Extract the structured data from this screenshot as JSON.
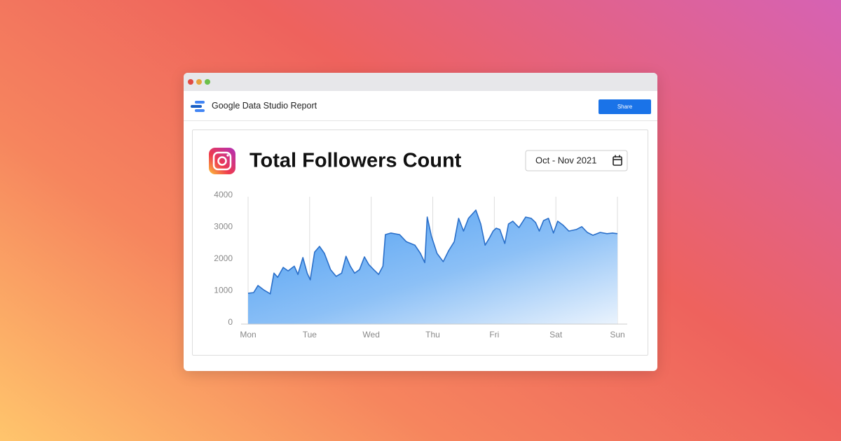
{
  "app": {
    "title": "Google Data Studio Report",
    "share": "Share"
  },
  "chart_data": {
    "type": "area",
    "title": "Total Followers Count",
    "subtitle": "Oct - Nov 2021",
    "xlim": [
      0,
      6
    ],
    "ylim": [
      0,
      4000
    ],
    "xticks": [
      {
        "value": 0,
        "label": "Mon"
      },
      {
        "value": 1,
        "label": "Tue"
      },
      {
        "value": 2,
        "label": "Wed"
      },
      {
        "value": 3,
        "label": "Thu"
      },
      {
        "value": 4,
        "label": "Fri"
      },
      {
        "value": 5,
        "label": "Sat"
      },
      {
        "value": 6,
        "label": "Sun"
      }
    ],
    "yticks": [
      0,
      1000,
      2000,
      3000,
      4000
    ],
    "grid": true,
    "series": [
      {
        "color": "#2a6fc9",
        "x": [
          0,
          0.09,
          0.16,
          0.25,
          0.36,
          0.42,
          0.48,
          0.57,
          0.65,
          0.75,
          0.81,
          0.89,
          0.96,
          1.01,
          1.08,
          1.16,
          1.24,
          1.34,
          1.43,
          1.52,
          1.59,
          1.66,
          1.73,
          1.81,
          1.89,
          1.96,
          2.04,
          2.12,
          2.19,
          2.23,
          2.32,
          2.46,
          2.57,
          2.71,
          2.8,
          2.87,
          2.91,
          2.98,
          3.07,
          3.17,
          3.26,
          3.35,
          3.42,
          3.5,
          3.58,
          3.7,
          3.78,
          3.85,
          3.92,
          3.98,
          4.03,
          4.09,
          4.17,
          4.23,
          4.3,
          4.4,
          4.51,
          4.6,
          4.67,
          4.73,
          4.8,
          4.88,
          4.96,
          5.03,
          5.12,
          5.21,
          5.33,
          5.42,
          5.51,
          5.6,
          5.72,
          5.83,
          5.92,
          6
        ],
        "values": [
          970,
          990,
          1210,
          1080,
          950,
          1600,
          1470,
          1780,
          1670,
          1820,
          1560,
          2090,
          1600,
          1390,
          2260,
          2440,
          2220,
          1710,
          1500,
          1600,
          2130,
          1820,
          1600,
          1710,
          2110,
          1870,
          1710,
          1560,
          1820,
          2810,
          2860,
          2810,
          2590,
          2480,
          2220,
          1930,
          3360,
          2750,
          2220,
          1960,
          2310,
          2590,
          3320,
          2920,
          3320,
          3580,
          3140,
          2480,
          2700,
          2920,
          3010,
          2970,
          2530,
          3140,
          3230,
          3030,
          3360,
          3320,
          3190,
          2920,
          3250,
          3320,
          2860,
          3230,
          3100,
          2920,
          2970,
          3060,
          2880,
          2790,
          2880,
          2840,
          2860,
          2840
        ]
      }
    ]
  }
}
